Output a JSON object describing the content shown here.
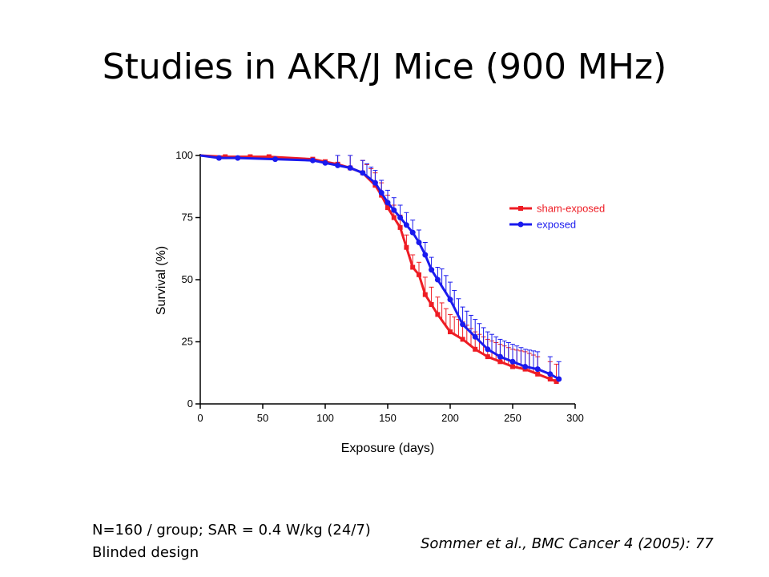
{
  "slide": {
    "title": "Studies in AKR/J Mice (900 MHz)",
    "footnote_line1": "N=160 / group; SAR = 0.4 W/kg (24/7)",
    "footnote_line2": "Blinded design",
    "citation": "Sommer et al., BMC Cancer 4 (2005): 77"
  },
  "colors": {
    "sham": "#ee1c24",
    "exposed": "#1a1aee",
    "axis": "#000000"
  },
  "chart_data": {
    "type": "line",
    "title": "",
    "xlabel": "Exposure (days)",
    "ylabel": "Survival (%)",
    "xlim": [
      0,
      300
    ],
    "ylim": [
      0,
      100
    ],
    "xticks": [
      0,
      50,
      100,
      150,
      200,
      250,
      300
    ],
    "yticks": [
      0,
      25,
      50,
      75,
      100
    ],
    "grid": false,
    "legend_position": "right",
    "error_bars": true,
    "series": [
      {
        "name": "sham-exposed",
        "color": "#ee1c24",
        "marker": "square",
        "x": [
          0,
          20,
          40,
          55,
          90,
          100,
          110,
          120,
          130,
          140,
          145,
          150,
          155,
          160,
          165,
          170,
          175,
          180,
          185,
          190,
          200,
          210,
          220,
          230,
          240,
          250,
          260,
          270,
          280,
          285
        ],
        "y": [
          100,
          99.5,
          99.5,
          99.5,
          98.5,
          97.5,
          96.5,
          95,
          93,
          88,
          84,
          79,
          75,
          71,
          63,
          55,
          52,
          44,
          40,
          36,
          29,
          26,
          22,
          19,
          17,
          15,
          14,
          12,
          10,
          9
        ]
      },
      {
        "name": "exposed",
        "color": "#1a1aee",
        "marker": "circle",
        "x": [
          0,
          15,
          30,
          60,
          90,
          100,
          110,
          120,
          130,
          140,
          145,
          150,
          155,
          160,
          165,
          170,
          175,
          180,
          185,
          190,
          200,
          210,
          220,
          230,
          240,
          250,
          260,
          270,
          280,
          287
        ],
        "y": [
          100,
          99,
          99,
          98.5,
          98,
          97,
          96,
          95,
          93,
          89,
          85,
          81,
          78,
          75,
          72,
          69,
          65,
          60,
          54,
          50,
          42,
          32,
          27,
          22,
          19,
          17,
          15,
          14,
          12,
          10
        ]
      }
    ]
  }
}
